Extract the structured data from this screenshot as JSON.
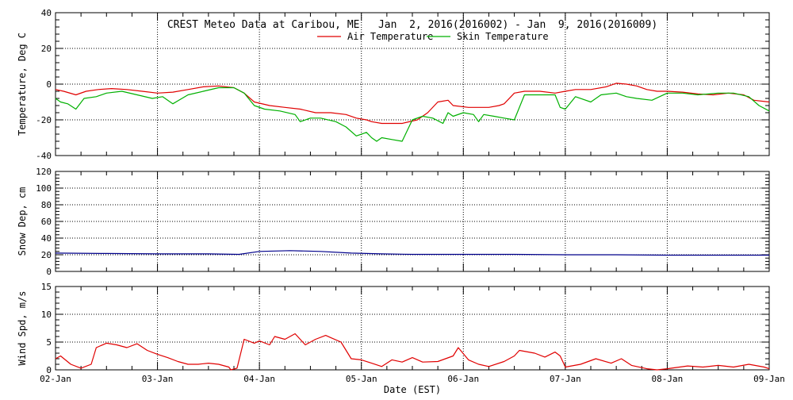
{
  "chart_data": [
    {
      "type": "line",
      "title": "CREST Meteo Data at Caribou, ME   Jan  2, 2016(2016002) - Jan  9, 2016(2016009)",
      "xlabel": "",
      "ylabel": "Temperature, Deg C",
      "xlim": [
        0,
        7
      ],
      "ylim": [
        -40,
        40
      ],
      "yticks": [
        -40,
        -20,
        0,
        20,
        40
      ],
      "grid": true,
      "legend": "top-center",
      "colors": {
        "Air Temperature": "#e00000",
        "Skin Temperature": "#00b000"
      },
      "series": [
        {
          "name": "Air Temperature",
          "x": [
            0,
            0.08,
            0.2,
            0.3,
            0.42,
            0.55,
            0.7,
            0.85,
            1.0,
            1.15,
            1.3,
            1.45,
            1.6,
            1.75,
            1.85,
            1.95,
            2.1,
            2.25,
            2.4,
            2.55,
            2.7,
            2.85,
            2.95,
            3.05,
            3.1,
            3.2,
            3.3,
            3.4,
            3.55,
            3.65,
            3.75,
            3.85,
            3.9,
            4.05,
            4.15,
            4.25,
            4.35,
            4.4,
            4.5,
            4.6,
            4.75,
            4.9,
            5.0,
            5.1,
            5.25,
            5.4,
            5.5,
            5.6,
            5.7,
            5.8,
            5.9,
            6.0,
            6.15,
            6.3,
            6.45,
            6.6,
            6.75,
            6.85,
            7.0
          ],
          "y": [
            -3,
            -4,
            -6,
            -4,
            -3,
            -2.5,
            -3,
            -4,
            -5,
            -4.5,
            -3,
            -1.5,
            -1,
            -2,
            -5,
            -10,
            -12,
            -13,
            -14,
            -16,
            -16,
            -17,
            -19,
            -20,
            -21,
            -22,
            -22,
            -22,
            -20,
            -16,
            -10,
            -9,
            -12,
            -13,
            -13,
            -13,
            -12,
            -11,
            -5,
            -4,
            -4,
            -5,
            -4,
            -3,
            -3,
            -1.5,
            0.5,
            0,
            -1,
            -3,
            -4,
            -4,
            -4.5,
            -5.5,
            -6,
            -5,
            -6,
            -9,
            -10
          ]
        },
        {
          "name": "Skin Temperature",
          "x": [
            0,
            0.05,
            0.12,
            0.2,
            0.28,
            0.4,
            0.5,
            0.65,
            0.8,
            0.95,
            1.05,
            1.15,
            1.3,
            1.45,
            1.6,
            1.75,
            1.85,
            1.95,
            2.05,
            2.2,
            2.35,
            2.4,
            2.5,
            2.6,
            2.75,
            2.85,
            2.95,
            3.05,
            3.1,
            3.15,
            3.2,
            3.3,
            3.4,
            3.5,
            3.6,
            3.7,
            3.8,
            3.85,
            3.9,
            4.0,
            4.1,
            4.15,
            4.2,
            4.3,
            4.4,
            4.5,
            4.6,
            4.75,
            4.9,
            4.95,
            5.0,
            5.1,
            5.25,
            5.35,
            5.5,
            5.6,
            5.7,
            5.85,
            6.0,
            6.15,
            6.3,
            6.5,
            6.65,
            6.8,
            6.9,
            7.0
          ],
          "y": [
            -8,
            -10,
            -11,
            -14,
            -8,
            -7,
            -5,
            -4,
            -6,
            -8,
            -7,
            -11,
            -6,
            -4,
            -2,
            -2,
            -5,
            -12,
            -14,
            -15,
            -17,
            -21,
            -19,
            -19,
            -21,
            -24,
            -29,
            -27,
            -30,
            -32,
            -30,
            -31,
            -32,
            -20,
            -18,
            -19,
            -22,
            -16,
            -18,
            -16,
            -17,
            -21,
            -17,
            -18,
            -19,
            -20,
            -6,
            -6,
            -6,
            -13,
            -14,
            -7,
            -10,
            -6,
            -5,
            -7,
            -8,
            -9,
            -5,
            -5,
            -6,
            -5,
            -5,
            -7,
            -12,
            -15
          ]
        }
      ]
    },
    {
      "type": "line",
      "title": "",
      "xlabel": "",
      "ylabel": "Snow Dep, cm",
      "xlim": [
        0,
        7
      ],
      "ylim": [
        0,
        120
      ],
      "yticks": [
        0,
        20,
        40,
        60,
        80,
        100,
        120
      ],
      "grid": true,
      "colors": {
        "snow": "#00008b"
      },
      "series": [
        {
          "x": [
            0,
            0.5,
            1.0,
            1.5,
            1.8,
            2.0,
            2.3,
            2.6,
            2.9,
            3.2,
            3.5,
            4.0,
            4.5,
            5.0,
            5.5,
            6.0,
            6.5,
            7.0
          ],
          "y": [
            22,
            21.5,
            21,
            21,
            20.5,
            24,
            25,
            24,
            22,
            21,
            20.5,
            20.5,
            20.5,
            20,
            20,
            19.5,
            19.5,
            19.5
          ]
        }
      ]
    },
    {
      "type": "line",
      "title": "",
      "xlabel": "Date (EST)",
      "ylabel": "Wind Spd, m/s",
      "xlim": [
        0,
        7
      ],
      "ylim": [
        0,
        15
      ],
      "yticks": [
        0,
        5,
        10,
        15
      ],
      "xticklabels": [
        "02-Jan",
        "03-Jan",
        "04-Jan",
        "05-Jan",
        "06-Jan",
        "07-Jan",
        "08-Jan",
        "09-Jan"
      ],
      "grid": true,
      "colors": {
        "wind": "#e00000"
      },
      "series": [
        {
          "x": [
            0,
            0.05,
            0.15,
            0.25,
            0.35,
            0.4,
            0.5,
            0.6,
            0.7,
            0.8,
            0.9,
            1.0,
            1.1,
            1.2,
            1.3,
            1.4,
            1.5,
            1.6,
            1.7,
            1.72,
            1.78,
            1.85,
            1.95,
            2.0,
            2.1,
            2.15,
            2.25,
            2.35,
            2.45,
            2.55,
            2.65,
            2.7,
            2.8,
            2.9,
            3.0,
            3.1,
            3.2,
            3.3,
            3.4,
            3.5,
            3.6,
            3.75,
            3.9,
            3.95,
            4.05,
            4.15,
            4.25,
            4.4,
            4.5,
            4.55,
            4.7,
            4.8,
            4.9,
            4.95,
            5.0,
            5.15,
            5.3,
            5.45,
            5.55,
            5.65,
            5.8,
            5.9,
            6.0,
            6.2,
            6.35,
            6.5,
            6.65,
            6.8,
            6.95,
            7.0
          ],
          "y": [
            2,
            2.5,
            1,
            0.3,
            1,
            4,
            4.8,
            4.5,
            4,
            4.7,
            3.5,
            2.8,
            2.2,
            1.5,
            1,
            1,
            1.2,
            1,
            0.5,
            0,
            0.3,
            5.5,
            4.8,
            5.2,
            4.5,
            6,
            5.5,
            6.5,
            4.5,
            5.5,
            6.2,
            5.8,
            5,
            2,
            1.8,
            1.2,
            0.6,
            1.8,
            1.4,
            2.2,
            1.4,
            1.5,
            2.5,
            4,
            1.8,
            1,
            0.6,
            1.5,
            2.5,
            3.5,
            3,
            2.3,
            3.2,
            2.5,
            0.5,
            1,
            2,
            1.2,
            2,
            0.8,
            0.2,
            0,
            0.2,
            0.7,
            0.5,
            0.8,
            0.5,
            1,
            0.5,
            0.2
          ]
        }
      ]
    }
  ]
}
